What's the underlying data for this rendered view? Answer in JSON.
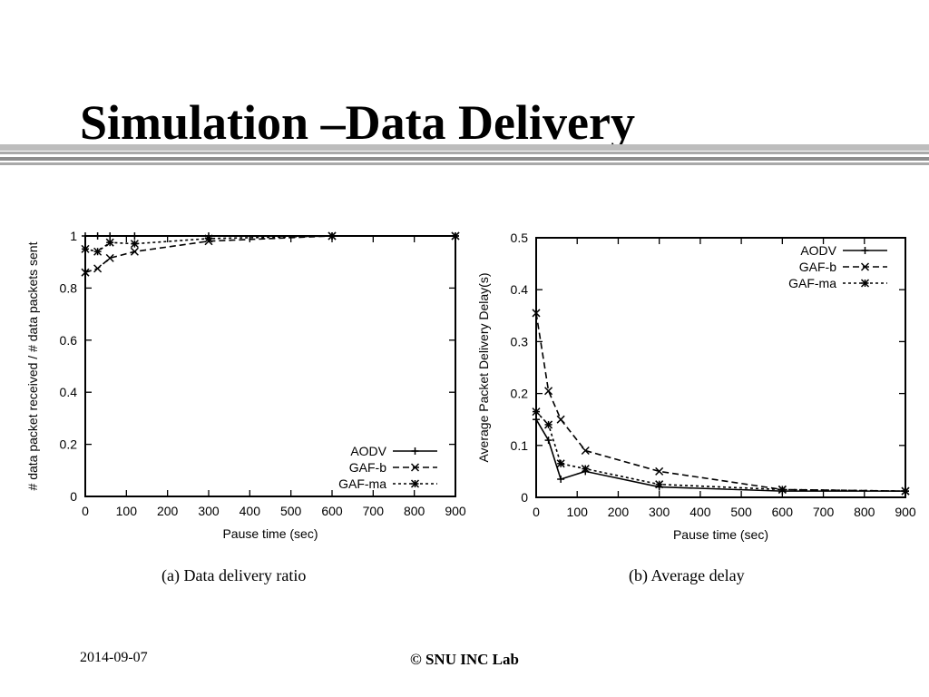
{
  "slide": {
    "title": "Simulation –Data Delivery",
    "footer_date": "2014-09-07",
    "footer_copyright": "© SNU INC Lab"
  },
  "chart_data": [
    {
      "type": "line",
      "caption": "(a) Data delivery ratio",
      "xlabel": "Pause time (sec)",
      "ylabel": "# data packet received / # data packets sent",
      "xlim": [
        0,
        900
      ],
      "ylim": [
        0,
        1
      ],
      "xticks": [
        0,
        100,
        200,
        300,
        400,
        500,
        600,
        700,
        800,
        900
      ],
      "xtick_labels": [
        "0",
        "100",
        "200",
        "300",
        "400",
        "500",
        "600",
        "700",
        "800",
        "900"
      ],
      "yticks": [
        0,
        0.2,
        0.4,
        0.6,
        0.8,
        1
      ],
      "ytick_labels": [
        "0",
        "0.2",
        "0.4",
        "0.6",
        "0.8",
        "1"
      ],
      "grid": false,
      "legend_position": "bottom-right",
      "series": [
        {
          "name": "AODV",
          "marker": "plus",
          "dash": "",
          "x": [
            0,
            30,
            60,
            120,
            300,
            600,
            900
          ],
          "y": [
            1.0,
            1.0,
            1.0,
            1.0,
            1.0,
            1.0,
            1.0
          ]
        },
        {
          "name": "GAF-b",
          "marker": "x",
          "dash": "7,4",
          "x": [
            0,
            30,
            60,
            120,
            300,
            600,
            900
          ],
          "y": [
            0.86,
            0.875,
            0.915,
            0.94,
            0.98,
            1.0,
            1.0
          ]
        },
        {
          "name": "GAF-ma",
          "marker": "star",
          "dash": "3,3",
          "x": [
            0,
            30,
            60,
            120,
            300,
            600,
            900
          ],
          "y": [
            0.95,
            0.94,
            0.975,
            0.97,
            0.99,
            1.0,
            1.0
          ]
        }
      ]
    },
    {
      "type": "line",
      "caption": "(b) Average delay",
      "xlabel": "Pause time (sec)",
      "ylabel": "Average Packet Delivery Delay(s)",
      "xlim": [
        0,
        900
      ],
      "ylim": [
        0,
        0.5
      ],
      "xticks": [
        0,
        100,
        200,
        300,
        400,
        500,
        600,
        700,
        800,
        900
      ],
      "xtick_labels": [
        "0",
        "100",
        "200",
        "300",
        "400",
        "500",
        "600",
        "700",
        "800",
        "900"
      ],
      "yticks": [
        0,
        0.1,
        0.2,
        0.3,
        0.4,
        0.5
      ],
      "ytick_labels": [
        "0",
        "0.1",
        "0.2",
        "0.3",
        "0.4",
        "0.5"
      ],
      "grid": false,
      "legend_position": "top-right",
      "series": [
        {
          "name": "AODV",
          "marker": "plus",
          "dash": "",
          "x": [
            0,
            30,
            60,
            120,
            300,
            600,
            900
          ],
          "y": [
            0.15,
            0.11,
            0.035,
            0.05,
            0.02,
            0.012,
            0.012
          ]
        },
        {
          "name": "GAF-b",
          "marker": "x",
          "dash": "7,4",
          "x": [
            0,
            30,
            60,
            120,
            300,
            600,
            900
          ],
          "y": [
            0.355,
            0.205,
            0.15,
            0.09,
            0.05,
            0.015,
            0.012
          ]
        },
        {
          "name": "GAF-ma",
          "marker": "star",
          "dash": "3,3",
          "x": [
            0,
            30,
            60,
            120,
            300,
            600,
            900
          ],
          "y": [
            0.165,
            0.14,
            0.065,
            0.055,
            0.025,
            0.015,
            0.012
          ]
        }
      ]
    }
  ]
}
